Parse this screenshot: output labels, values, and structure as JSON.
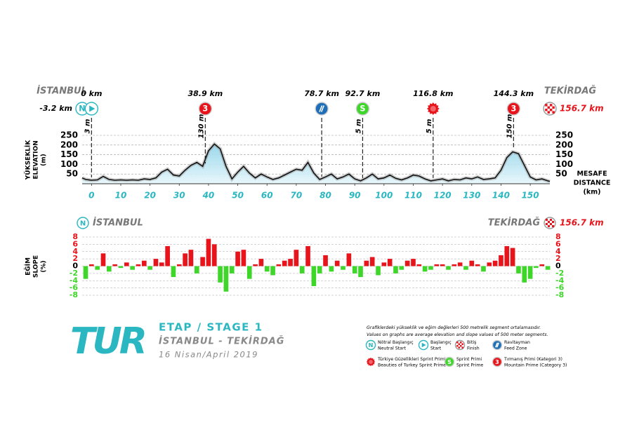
{
  "header": {
    "start": "İSTANBUL",
    "finish": "TEKİRDAĞ"
  },
  "markers": [
    {
      "label": "-3.2 km",
      "km": -3.2,
      "kind": "neutral",
      "icon": "N"
    },
    {
      "label": "0 km",
      "km": 0,
      "kind": "start",
      "line_label": "3 m"
    },
    {
      "label": "38.9 km",
      "km": 38.9,
      "kind": "climb",
      "icon": "3",
      "line_label": "130 m"
    },
    {
      "label": "78.7 km",
      "km": 78.7,
      "kind": "feed"
    },
    {
      "label": "92.7 km",
      "km": 92.7,
      "kind": "sprint",
      "icon": "S",
      "line_label": "5 m"
    },
    {
      "label": "116.8 km",
      "km": 116.8,
      "kind": "beauty",
      "line_label": "5 m"
    },
    {
      "label": "144.3 km",
      "km": 144.3,
      "kind": "climb",
      "icon": "3",
      "line_label": "150 m"
    },
    {
      "label": "156.7 km",
      "km": 156.7,
      "kind": "finish"
    }
  ],
  "chart_data": [
    {
      "type": "area",
      "y_label": [
        "YÜKSEKLİK",
        "ELEVATION",
        "(m)"
      ],
      "x_label": [
        "MESAFE",
        "DISTANCE",
        "(km)"
      ],
      "x": [
        -3.2,
        -2,
        0,
        2,
        4,
        6,
        8,
        10,
        12,
        14,
        16,
        18,
        20,
        22,
        24,
        26,
        28,
        30,
        32,
        34,
        36,
        38,
        40,
        42,
        44,
        46,
        48,
        50,
        52,
        54,
        56,
        58,
        60,
        62,
        64,
        66,
        68,
        70,
        72,
        74,
        76,
        78,
        80,
        82,
        84,
        86,
        88,
        90,
        92,
        94,
        96,
        98,
        100,
        102,
        104,
        106,
        108,
        110,
        112,
        114,
        116,
        118,
        120,
        122,
        124,
        126,
        128,
        130,
        132,
        134,
        136,
        138,
        140,
        142,
        144,
        146,
        148,
        150,
        152,
        154,
        156,
        156.7
      ],
      "values": [
        30,
        22,
        18,
        20,
        38,
        22,
        18,
        20,
        18,
        20,
        18,
        25,
        22,
        30,
        60,
        75,
        45,
        40,
        70,
        95,
        110,
        90,
        170,
        205,
        180,
        90,
        25,
        60,
        90,
        55,
        30,
        50,
        35,
        22,
        30,
        45,
        60,
        75,
        70,
        110,
        55,
        22,
        35,
        50,
        25,
        35,
        50,
        25,
        15,
        30,
        50,
        25,
        30,
        45,
        28,
        20,
        30,
        45,
        40,
        25,
        15,
        20,
        25,
        15,
        22,
        20,
        30,
        25,
        35,
        22,
        25,
        30,
        70,
        135,
        165,
        155,
        95,
        35,
        20,
        25,
        15,
        12
      ],
      "color": "#bfe6f2",
      "line_color": "#111111",
      "xlim": [
        -3.2,
        156.7
      ],
      "xticks": [
        0,
        10,
        20,
        30,
        40,
        50,
        60,
        70,
        80,
        90,
        100,
        110,
        120,
        130,
        140,
        150
      ],
      "ylim": [
        0,
        250
      ],
      "yticks": [
        50,
        100,
        150,
        200,
        250
      ],
      "grid": true
    },
    {
      "type": "bar",
      "y_label": [
        "EĞİM",
        "SLOPE",
        "(%)"
      ],
      "x": [
        -3,
        -1,
        1,
        3,
        5,
        7,
        9,
        11,
        13,
        15,
        17,
        19,
        21,
        23,
        25,
        27,
        29,
        31,
        33,
        35,
        37,
        39,
        41,
        43,
        45,
        47,
        49,
        51,
        53,
        55,
        57,
        59,
        61,
        63,
        65,
        67,
        69,
        71,
        73,
        75,
        77,
        79,
        81,
        83,
        85,
        87,
        89,
        91,
        93,
        95,
        97,
        99,
        101,
        103,
        105,
        107,
        109,
        111,
        113,
        115,
        117,
        119,
        121,
        123,
        125,
        127,
        129,
        131,
        133,
        135,
        137,
        139,
        141,
        143,
        145,
        147,
        149,
        151,
        153,
        155
      ],
      "values": [
        -3.5,
        0.5,
        -1,
        3.5,
        -1.5,
        0.5,
        -0.5,
        1,
        -1,
        0.5,
        1.5,
        -1,
        2,
        1,
        5.5,
        -3,
        0.5,
        3.5,
        4.5,
        -2,
        2.5,
        7.5,
        6,
        -4.5,
        -7,
        -2,
        4,
        4.5,
        -3.5,
        0.5,
        2,
        -1.5,
        -2.5,
        0.5,
        1.5,
        2,
        4.5,
        -2,
        5.5,
        -5.5,
        -2,
        3,
        -1.5,
        1.5,
        -1,
        3.5,
        -2,
        -3,
        1.5,
        2.5,
        -2.5,
        1,
        2,
        -2,
        -1,
        1.5,
        2,
        0.5,
        -1.5,
        -1,
        0.5,
        0.5,
        -1,
        0.5,
        1,
        -1,
        1.5,
        0.5,
        -1.5,
        1,
        1.5,
        3,
        5.5,
        5,
        -2,
        -4.5,
        -3.5,
        -0.5,
        0.5,
        -1
      ],
      "positive_color": "#e8141b",
      "negative_color": "#3fd62a",
      "xlim": [
        -3.2,
        156.7
      ],
      "ylim": [
        -8,
        8
      ],
      "yticks": [
        -8,
        -6,
        -4,
        -2,
        0,
        2,
        4,
        6,
        8
      ],
      "grid": true
    }
  ],
  "stage": {
    "logo": "TUR",
    "title": "ETAP / STAGE 1",
    "route": "İSTANBUL - TEKİRDAĞ",
    "date": "16 Nisan/April 2019"
  },
  "legend": {
    "note": [
      "Grafiklerdeki yükseklik ve eğim değlerleri 500 metrelik segment ortalamasıdır.",
      "Values on graphs are average elevation and slope values of 500 meter segments."
    ],
    "items": [
      {
        "kind": "neutral",
        "icon": "N",
        "lines": [
          "Nötral Başlangıç",
          "Neutral Start"
        ]
      },
      {
        "kind": "start",
        "lines": [
          "Başlangıç",
          "Start"
        ]
      },
      {
        "kind": "finish",
        "lines": [
          "Bitiş",
          "Finish"
        ]
      },
      {
        "kind": "feed",
        "lines": [
          "Ravitayman",
          "Feed Zone"
        ]
      },
      {
        "kind": "beauty",
        "lines": [
          "Türkiye Güzellikleri Sprint Primi",
          "Beauties of Turkey Sprint Prime"
        ]
      },
      {
        "kind": "sprint",
        "icon": "S",
        "lines": [
          "Sprint Primi",
          "Sprint Prime"
        ]
      },
      {
        "kind": "climb",
        "icon": "3",
        "lines": [
          "Tırmanış Primi (Kategori 3)",
          "Mountain Prime (Category 3)"
        ]
      }
    ]
  }
}
